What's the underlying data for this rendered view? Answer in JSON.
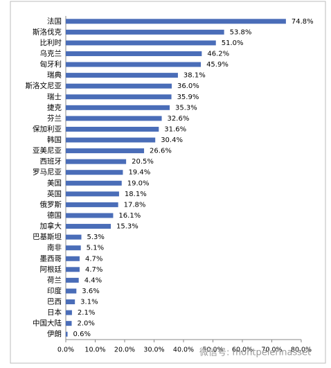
{
  "chart_data": {
    "type": "hbar",
    "categories": [
      "法国",
      "斯洛伐克",
      "比利时",
      "乌克兰",
      "匈牙利",
      "瑞典",
      "斯洛文尼亚",
      "瑞士",
      "捷克",
      "芬兰",
      "保加利亚",
      "韩国",
      "亚美尼亚",
      "西班牙",
      "罗马尼亚",
      "美国",
      "英国",
      "俄罗斯",
      "德国",
      "加拿大",
      "巴基斯坦",
      "南非",
      "墨西哥",
      "阿根廷",
      "荷兰",
      "印度",
      "巴西",
      "日本",
      "中国大陆",
      "伊朗"
    ],
    "values": [
      74.8,
      53.8,
      51.0,
      46.2,
      45.9,
      38.1,
      36.0,
      35.9,
      35.3,
      32.6,
      31.6,
      30.4,
      26.6,
      20.5,
      19.4,
      19.0,
      18.1,
      17.8,
      16.1,
      15.3,
      5.3,
      5.1,
      4.7,
      4.7,
      4.4,
      3.6,
      3.1,
      2.1,
      2.0,
      0.6
    ],
    "value_labels": [
      "74.8%",
      "53.8%",
      "51.0%",
      "46.2%",
      "45.9%",
      "38.1%",
      "36.0%",
      "35.9%",
      "35.3%",
      "32.6%",
      "31.6%",
      "30.4%",
      "26.6%",
      "20.5%",
      "19.4%",
      "19.0%",
      "18.1%",
      "17.8%",
      "16.1%",
      "15.3%",
      "5.3%",
      "5.1%",
      "4.7%",
      "4.7%",
      "4.4%",
      "3.6%",
      "3.1%",
      "2.1%",
      "2.0%",
      "0.6%"
    ],
    "color": "#4a6db8",
    "xlim": [
      0,
      80
    ],
    "xticks": [
      {
        "value": 0,
        "label": "0.0%"
      },
      {
        "value": 10,
        "label": "10.0%"
      },
      {
        "value": 20,
        "label": "20.0%"
      },
      {
        "value": 30,
        "label": "30.0%"
      },
      {
        "value": 40,
        "label": "40.0%"
      },
      {
        "value": 50,
        "label": "50.0%"
      },
      {
        "value": 60,
        "label": "60.0%"
      },
      {
        "value": 70,
        "label": "70.0%"
      },
      {
        "value": 80,
        "label": "80.0%"
      }
    ],
    "watermark": "微信号: montpelerinasset"
  }
}
